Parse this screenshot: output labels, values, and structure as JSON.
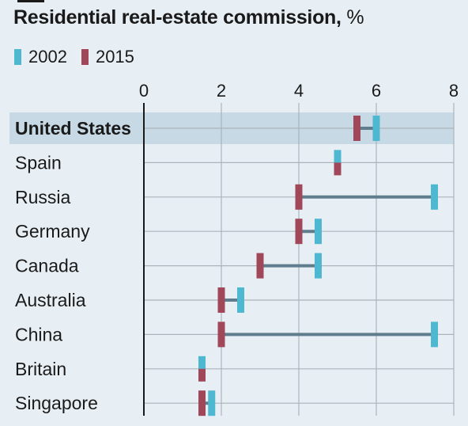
{
  "header": {
    "title": "Residential real-estate commission,",
    "unit": "%"
  },
  "colors": {
    "y2002": "#4db8d0",
    "y2015": "#a0485a",
    "connector": "#5f7d8c",
    "grid": "#aab4bb",
    "highlight": "#c7d9e4",
    "axis": "#1a1a1a"
  },
  "chart_data": {
    "type": "dot-range",
    "title": "Residential real-estate commission, %",
    "x_ticks": [
      "0",
      "2",
      "4",
      "6",
      "8"
    ],
    "xlim": [
      0,
      8
    ],
    "legend_placement": "top-left",
    "highlighted_category": "United States",
    "categories": [
      "United States",
      "Spain",
      "Russia",
      "Germany",
      "Canada",
      "Australia",
      "China",
      "Britain",
      "Singapore"
    ],
    "series": [
      {
        "name": "2002",
        "values": [
          6.0,
          5.0,
          7.5,
          4.5,
          4.5,
          2.5,
          7.5,
          1.5,
          1.75
        ]
      },
      {
        "name": "2015",
        "values": [
          5.5,
          5.0,
          4.0,
          4.0,
          3.0,
          2.0,
          2.0,
          1.5,
          1.5
        ]
      }
    ]
  }
}
